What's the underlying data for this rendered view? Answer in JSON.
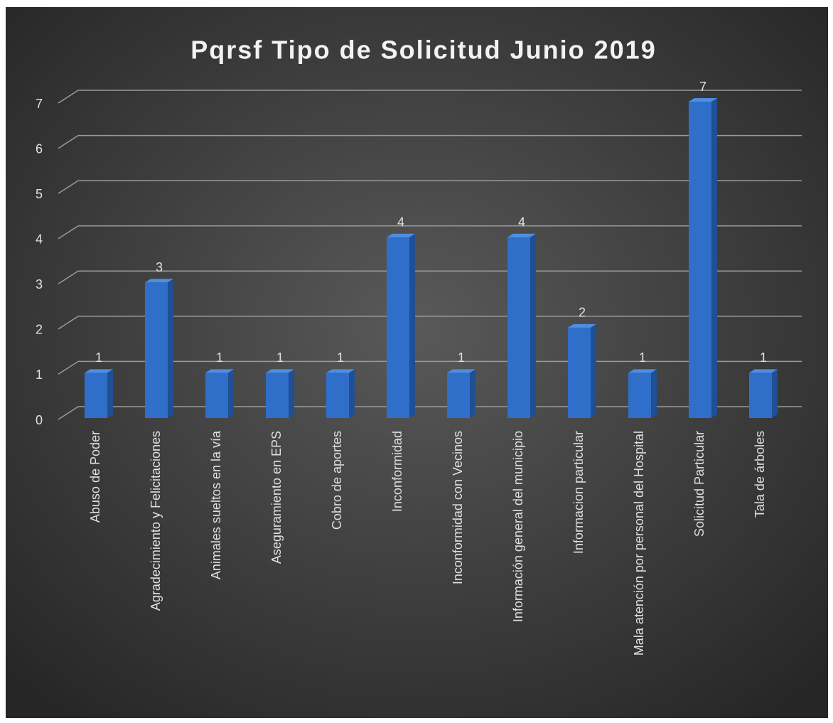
{
  "chart_data": {
    "type": "bar",
    "title": "Pqrsf Tipo de Solicitud Junio 2019",
    "categories": [
      "Abuso de Poder",
      "Agradecimiento y Felicitaciones",
      "Animales sueltos en la vía",
      "Aseguramiento en EPS",
      "Cobro de aportes",
      "Inconformidad",
      "Inconformidad con Vecinos",
      "Información general del municipio",
      "Informacion particular",
      "Mala atención por personal del Hospital",
      "Solicitud Particular",
      "Tala de árboles"
    ],
    "values": [
      1,
      3,
      1,
      1,
      1,
      4,
      1,
      4,
      2,
      1,
      7,
      1
    ],
    "color": "#2f6fc9",
    "ylim": [
      0,
      7
    ],
    "yticks": [
      0,
      1,
      2,
      3,
      4,
      5,
      6,
      7
    ],
    "grid": true
  }
}
